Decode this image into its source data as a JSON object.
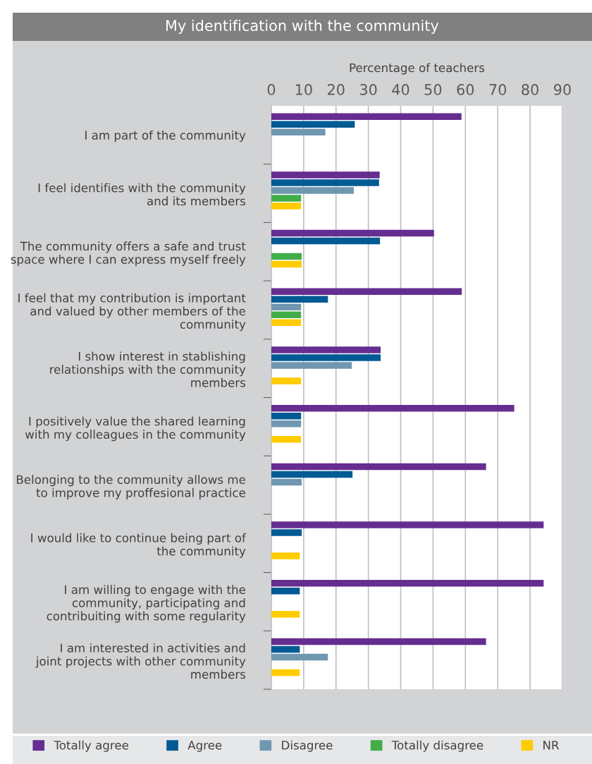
{
  "chart_data": {
    "type": "bar",
    "orientation": "horizontal",
    "title": "My identification with the community",
    "xlabel": "Percentage of teachers",
    "categories": [
      "I am part of the community",
      "I feel identifies with the community\nand its members",
      "The community offers a safe and trust\nspace where I can express myself freely",
      "I feel that my contribution is important\nand valued by other members of the\ncommunity",
      "I show interest in stablishing\nrelationships with the community\nmembers",
      "I positively value the shared learning\nwith my colleagues in the community",
      "Belonging to the community allows me\nto improve my proffesional practice",
      "I would like to continue being part of\nthe community",
      "I am willing to engage with the\ncommunity, participating and\ncontribuiting with some regularity",
      "I am interested in activities and\njoint projects with other community\nmembers"
    ],
    "series": [
      {
        "name": "Totally agree",
        "color": "#662d91",
        "values": [
          58.8,
          33.5,
          50.3,
          58.9,
          33.8,
          75.1,
          66.4,
          84.2,
          84.2,
          66.4
        ]
      },
      {
        "name": "Agree",
        "color": "#005a94",
        "values": [
          25.8,
          33.3,
          33.6,
          17.5,
          33.8,
          9.2,
          25.1,
          9.4,
          8.8,
          8.8
        ]
      },
      {
        "name": "Disagree",
        "color": "#7097b0",
        "values": [
          16.7,
          25.5,
          null,
          9.2,
          24.9,
          9.2,
          9.4,
          null,
          null,
          17.5
        ]
      },
      {
        "name": "Totally disagree",
        "color": "#41ae4a",
        "values": [
          null,
          9.2,
          9.4,
          9.2,
          null,
          null,
          null,
          null,
          null,
          null
        ]
      },
      {
        "name": "NR",
        "color": "#ffcc00",
        "values": [
          null,
          9.2,
          9.4,
          9.2,
          9.2,
          9.2,
          null,
          8.8,
          8.8,
          8.8
        ]
      }
    ],
    "xlim": [
      0,
      90
    ],
    "xticks": [
      0,
      10,
      20,
      30,
      40,
      50,
      60,
      70,
      80,
      90
    ],
    "grid": "x",
    "legend": "bottom"
  }
}
